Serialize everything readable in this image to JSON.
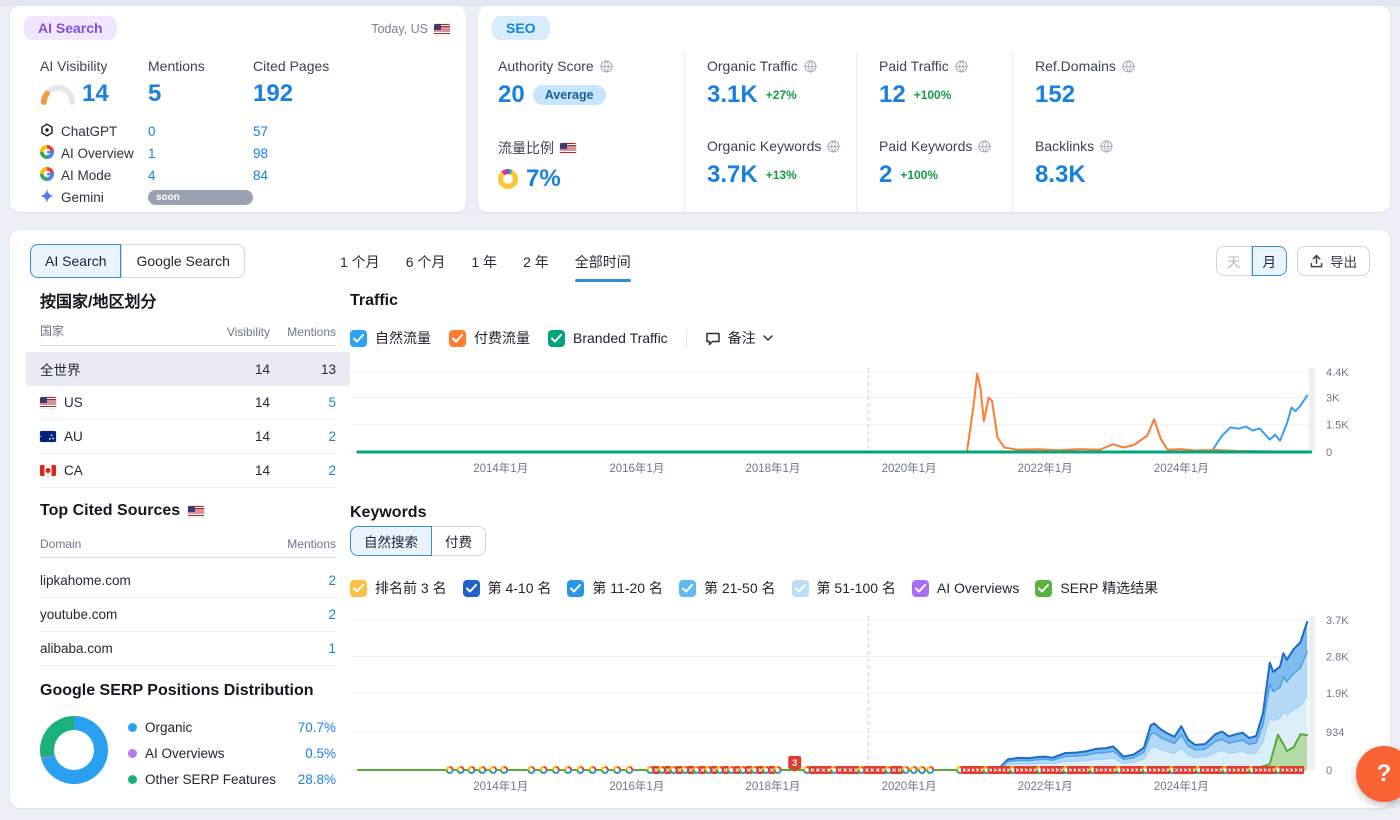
{
  "ai": {
    "badge": "AI Search",
    "context": "Today, US",
    "columns": {
      "visibility": "AI Visibility",
      "mentions": "Mentions",
      "cited": "Cited Pages"
    },
    "summary": {
      "visibility": "14",
      "mentions": "5",
      "cited": "192"
    },
    "gauge": {
      "track_color": "#e3e6ec",
      "fill_color": "#f59a3d"
    },
    "rows": [
      {
        "icon": "chatgpt-icon",
        "name": "ChatGPT",
        "mentions": "0",
        "cited": "57"
      },
      {
        "icon": "google-icon",
        "name": "AI Overview",
        "mentions": "1",
        "cited": "98"
      },
      {
        "icon": "google-icon",
        "name": "AI Mode",
        "mentions": "4",
        "cited": "84"
      },
      {
        "icon": "gemini-icon",
        "name": "Gemini",
        "badge": "soon"
      }
    ]
  },
  "seo": {
    "badge": "SEO",
    "metrics": [
      {
        "label": "Authority Score",
        "value": "20",
        "pill": "Average"
      },
      {
        "label": "Organic Traffic",
        "value": "3.1K",
        "delta": "+27%"
      },
      {
        "label": "Paid Traffic",
        "value": "12",
        "delta": "+100%"
      },
      {
        "label": "Ref.Domains",
        "value": "152"
      },
      {
        "label": "流量比例",
        "flag": "us",
        "value": "7%",
        "donut": true
      },
      {
        "label": "Organic Keywords",
        "value": "3.7K",
        "delta": "+13%"
      },
      {
        "label": "Paid Keywords",
        "value": "2",
        "delta": "+100%"
      },
      {
        "label": "Backlinks",
        "value": "8.3K"
      }
    ]
  },
  "toolbar": {
    "source_tabs": [
      "AI Search",
      "Google Search"
    ],
    "active_source": 0,
    "range_tabs": [
      "1 个月",
      "6 个月",
      "1 年",
      "2 年",
      "全部时间"
    ],
    "active_range": 4,
    "granularity": [
      "天",
      "月"
    ],
    "active_granularity": 1,
    "export_label": "导出"
  },
  "regions": {
    "title": "按国家/地区划分",
    "headers": {
      "country": "国家",
      "visibility": "Visibility",
      "mentions": "Mentions"
    },
    "rows": [
      {
        "name": "全世界",
        "flag": null,
        "visibility": "14",
        "mentions": "13",
        "selected": true,
        "link": false
      },
      {
        "name": "US",
        "flag": "us",
        "visibility": "14",
        "mentions": "5",
        "selected": false,
        "link": true
      },
      {
        "name": "AU",
        "flag": "au",
        "visibility": "14",
        "mentions": "2",
        "selected": false,
        "link": true
      },
      {
        "name": "CA",
        "flag": "ca",
        "visibility": "14",
        "mentions": "2",
        "selected": false,
        "link": true
      }
    ]
  },
  "cited_sources": {
    "title": "Top Cited Sources",
    "flag": "us",
    "headers": {
      "domain": "Domain",
      "mentions": "Mentions"
    },
    "rows": [
      {
        "domain": "lipkahome.com",
        "mentions": "2"
      },
      {
        "domain": "youtube.com",
        "mentions": "2"
      },
      {
        "domain": "alibaba.com",
        "mentions": "1"
      }
    ]
  },
  "serp_distribution": {
    "title": "Google SERP Positions Distribution",
    "items": [
      {
        "label": "Organic",
        "value": "70.7%",
        "pct": 70.7,
        "color": "#2aa0f0"
      },
      {
        "label": "AI Overviews",
        "value": "0.5%",
        "pct": 0.5,
        "color": "#b57cf2"
      },
      {
        "label": "Other SERP Features",
        "value": "28.8%",
        "pct": 28.8,
        "color": "#1cb07a"
      }
    ]
  },
  "traffic_section": {
    "title": "Traffic",
    "legend": [
      {
        "label": "自然流量",
        "color": "#2ba3f3",
        "checked": true
      },
      {
        "label": "付费流量",
        "color": "#ff7d33",
        "checked": true
      },
      {
        "label": "Branded Traffic",
        "color": "#00a57e",
        "checked": true
      }
    ],
    "notes_label": "备注"
  },
  "keywords_section": {
    "title": "Keywords",
    "tabs": [
      "自然搜索",
      "付费"
    ],
    "active_tab": 0,
    "legend": [
      {
        "label": "排名前 3 名",
        "color": "#ffc043",
        "checked": true
      },
      {
        "label": "第 4-10 名",
        "color": "#2160c4",
        "checked": true
      },
      {
        "label": "第 11-20 名",
        "color": "#2596e8",
        "checked": true
      },
      {
        "label": "第 21-50 名",
        "color": "#62b7f0",
        "checked": true
      },
      {
        "label": "第 51-100 名",
        "color": "#b9ddf6",
        "checked": true
      },
      {
        "label": "AI Overviews",
        "color": "#a96ef5",
        "checked": true
      },
      {
        "label": "SERP 精选结果",
        "color": "#56b33c",
        "checked": true
      }
    ]
  },
  "chart_data": [
    {
      "id": "traffic",
      "type": "line",
      "title": "Traffic",
      "x_axis": {
        "domain": [
          2011.8,
          2025.95
        ],
        "label_years": [
          2014,
          2016,
          2018,
          2020,
          2022,
          2024
        ],
        "labels": [
          "2014年1月",
          "2016年1月",
          "2018年1月",
          "2020年1月",
          "2022年1月",
          "2024年1月"
        ]
      },
      "y_axis": {
        "max": 4400,
        "tick_values": [
          0,
          1500,
          3000,
          4400
        ],
        "ticks": [
          "0",
          "1.5K",
          "3K",
          "4.4K"
        ]
      },
      "annotation_line_year": 2019.4,
      "series": [
        {
          "name": "自然流量",
          "color": "#3b9ef0",
          "width": 2,
          "points": [
            [
              2011.9,
              0
            ],
            [
              2024.35,
              0
            ],
            [
              2024.45,
              60
            ],
            [
              2024.6,
              900
            ],
            [
              2024.72,
              1350
            ],
            [
              2024.85,
              1280
            ],
            [
              2024.95,
              1400
            ],
            [
              2025.05,
              1180
            ],
            [
              2025.15,
              1300
            ],
            [
              2025.3,
              680
            ],
            [
              2025.38,
              950
            ],
            [
              2025.45,
              620
            ],
            [
              2025.55,
              1550
            ],
            [
              2025.62,
              2450
            ],
            [
              2025.68,
              2250
            ],
            [
              2025.75,
              2550
            ],
            [
              2025.85,
              3100
            ]
          ]
        },
        {
          "name": "付费流量",
          "color": "#ff7d33",
          "width": 2,
          "points": [
            [
              2011.9,
              0
            ],
            [
              2020.85,
              0
            ],
            [
              2020.95,
              2600
            ],
            [
              2021.0,
              4300
            ],
            [
              2021.05,
              3500
            ],
            [
              2021.1,
              1700
            ],
            [
              2021.17,
              3000
            ],
            [
              2021.22,
              2800
            ],
            [
              2021.3,
              800
            ],
            [
              2021.4,
              250
            ],
            [
              2021.6,
              120
            ],
            [
              2021.9,
              150
            ],
            [
              2022.2,
              100
            ],
            [
              2022.5,
              160
            ],
            [
              2022.8,
              120
            ],
            [
              2023.0,
              430
            ],
            [
              2023.15,
              250
            ],
            [
              2023.3,
              380
            ],
            [
              2023.5,
              900
            ],
            [
              2023.6,
              1800
            ],
            [
              2023.7,
              700
            ],
            [
              2023.8,
              120
            ],
            [
              2024.0,
              160
            ],
            [
              2024.2,
              80
            ],
            [
              2024.5,
              110
            ],
            [
              2024.8,
              60
            ],
            [
              2025.2,
              40
            ],
            [
              2025.85,
              30
            ]
          ]
        },
        {
          "name": "Branded Traffic",
          "color": "#00a57e",
          "width": 3,
          "points": [
            [
              2011.9,
              0
            ],
            [
              2025.9,
              0
            ]
          ]
        }
      ]
    },
    {
      "id": "keywords",
      "type": "stacked-area",
      "title": "Keywords",
      "x_axis": {
        "domain": [
          2011.8,
          2025.95
        ],
        "label_years": [
          2014,
          2016,
          2018,
          2020,
          2022,
          2024
        ],
        "labels": [
          "2014年1月",
          "2016年1月",
          "2018年1月",
          "2020年1月",
          "2022年1月",
          "2024年1月"
        ]
      },
      "y_axis": {
        "max": 3700,
        "tick_values": [
          0,
          934,
          1900,
          2800,
          3700
        ],
        "ticks": [
          "0",
          "934",
          "1.9K",
          "2.8K",
          "3.7K"
        ]
      },
      "annotation_line_year": 2019.4,
      "series": [
        {
          "name": "total-keywords",
          "stroke": "#1a6bcc",
          "fill": "#7fbbee",
          "width": 2,
          "points": [
            [
              2021.3,
              0
            ],
            [
              2021.45,
              260
            ],
            [
              2021.6,
              300
            ],
            [
              2021.75,
              290
            ],
            [
              2021.9,
              320
            ],
            [
              2022.0,
              330
            ],
            [
              2022.1,
              300
            ],
            [
              2022.3,
              420
            ],
            [
              2022.45,
              430
            ],
            [
              2022.6,
              460
            ],
            [
              2022.75,
              520
            ],
            [
              2022.9,
              540
            ],
            [
              2023.0,
              580
            ],
            [
              2023.05,
              500
            ],
            [
              2023.15,
              330
            ],
            [
              2023.3,
              380
            ],
            [
              2023.45,
              550
            ],
            [
              2023.55,
              1100
            ],
            [
              2023.6,
              1150
            ],
            [
              2023.7,
              1000
            ],
            [
              2023.8,
              900
            ],
            [
              2023.9,
              820
            ],
            [
              2024.0,
              1080
            ],
            [
              2024.1,
              750
            ],
            [
              2024.2,
              620
            ],
            [
              2024.35,
              640
            ],
            [
              2024.5,
              880
            ],
            [
              2024.6,
              950
            ],
            [
              2024.7,
              830
            ],
            [
              2024.8,
              880
            ],
            [
              2024.9,
              920
            ],
            [
              2025.0,
              790
            ],
            [
              2025.1,
              840
            ],
            [
              2025.2,
              1400
            ],
            [
              2025.3,
              2650
            ],
            [
              2025.35,
              2420
            ],
            [
              2025.45,
              2550
            ],
            [
              2025.5,
              2880
            ],
            [
              2025.55,
              2720
            ],
            [
              2025.65,
              2980
            ],
            [
              2025.75,
              3150
            ],
            [
              2025.85,
              3650
            ]
          ]
        },
        {
          "name": "mid-band",
          "stroke": "#4a9fe8",
          "fill": "#b3d9f6",
          "width": 1.5,
          "scale_of_total": 0.8
        },
        {
          "name": "light-band",
          "stroke": "#9ccdf2",
          "fill": "#ddeefb",
          "width": 1,
          "scale_of_total": 0.5
        },
        {
          "name": "serp-features",
          "stroke": "#58a83a",
          "fill": "rgba(134,196,63,0.45)",
          "width": 2,
          "points": [
            [
              2011.9,
              0
            ],
            [
              2024.85,
              0
            ],
            [
              2025.0,
              40
            ],
            [
              2025.1,
              60
            ],
            [
              2025.2,
              90
            ],
            [
              2025.3,
              150
            ],
            [
              2025.42,
              870
            ],
            [
              2025.5,
              640
            ],
            [
              2025.55,
              470
            ],
            [
              2025.65,
              560
            ],
            [
              2025.75,
              880
            ],
            [
              2025.85,
              860
            ]
          ]
        }
      ],
      "baseline_markers": {
        "badge": "3",
        "badge_year": 2018.32,
        "ranges": [
          {
            "from": 2013.25,
            "to": 2014.2,
            "step": 0.16,
            "mix": "g"
          },
          {
            "from": 2014.45,
            "to": 2016.0,
            "step": 0.18,
            "mix": "g"
          },
          {
            "from": 2016.2,
            "to": 2018.1,
            "step": 0.085,
            "mix": "mixed"
          },
          {
            "from": 2018.5,
            "to": 2019.9,
            "step": 0.08,
            "mix": "flags"
          },
          {
            "from": 2019.95,
            "to": 2020.35,
            "step": 0.12,
            "mix": "g"
          },
          {
            "from": 2020.75,
            "to": 2025.8,
            "step": 0.065,
            "mix": "flags2"
          }
        ]
      }
    }
  ],
  "help": {
    "label": "?"
  }
}
